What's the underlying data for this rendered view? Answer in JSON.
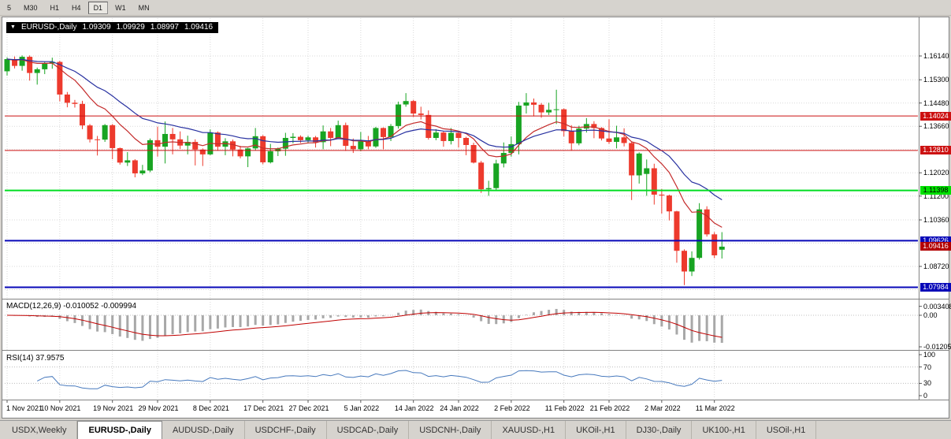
{
  "toolbar": {
    "timeframes": [
      "5",
      "M30",
      "H1",
      "H4",
      "D1",
      "W1",
      "MN"
    ],
    "active": "D1"
  },
  "chart": {
    "symbol": "EURUSD-,Daily",
    "ohlc": {
      "open": "1.09309",
      "high": "1.09929",
      "low": "1.08997",
      "close": "1.09416"
    },
    "mas": [
      {
        "name": "ma-fast",
        "period": 10,
        "color": "#c42b2b"
      },
      {
        "name": "ma-slow",
        "period": 21,
        "color": "#2730a0"
      }
    ],
    "hlines": [
      {
        "value": 1.14024,
        "color": "#cc1111",
        "width": 1
      },
      {
        "value": 1.1281,
        "color": "#cc1111",
        "width": 1
      },
      {
        "value": 1.11398,
        "color": "#00dd22",
        "width": 2
      },
      {
        "value": 1.09626,
        "color": "#0808b8",
        "width": 2
      },
      {
        "value": 1.07984,
        "color": "#0808b8",
        "width": 2
      }
    ],
    "tags": [
      {
        "label": "1.14024",
        "value": 1.14024,
        "bg": "#cc1111",
        "fg": "#ffffff",
        "current": false
      },
      {
        "label": "1.12810",
        "value": 1.1281,
        "bg": "#cc1111",
        "fg": "#ffffff",
        "current": false
      },
      {
        "label": "1.11398",
        "value": 1.11398,
        "bg": "#00e000",
        "fg": "#000000",
        "current": false
      },
      {
        "label": "1.09626",
        "value": 1.09626,
        "bg": "#0808b8",
        "fg": "#ffffff",
        "current": false
      },
      {
        "label": "1.09416",
        "value": 1.09416,
        "bg": "#b30000",
        "fg": "#ffffff",
        "current": true
      },
      {
        "label": "1.07984",
        "value": 1.07984,
        "bg": "#0808b8",
        "fg": "#ffffff",
        "current": false
      }
    ]
  },
  "chart_data": {
    "type": "candlestick",
    "symbol": "EURUSD",
    "timeframe": "Daily",
    "y_grid": [
      1.1614,
      1.153,
      1.1448,
      1.1366,
      1.1284,
      1.1202,
      1.112,
      1.1036,
      1.0954,
      1.0872,
      1.079
    ],
    "price_axis_labels": [
      {
        "label": "1.16140",
        "value": 1.1614
      },
      {
        "label": "1.15300",
        "value": 1.153
      },
      {
        "label": "1.14480",
        "value": 1.1448
      },
      {
        "label": "1.13660",
        "value": 1.1366
      },
      {
        "label": "1.12020",
        "value": 1.1202
      },
      {
        "label": "1.11200",
        "value": 1.112
      },
      {
        "label": "1.10360",
        "value": 1.1036
      },
      {
        "label": "1.08720",
        "value": 1.0872
      }
    ],
    "x_ticks": [
      {
        "index": 0,
        "label": "1 Nov 2021"
      },
      {
        "index": 7,
        "label": "10 Nov 2021"
      },
      {
        "index": 14,
        "label": "19 Nov 2021"
      },
      {
        "index": 20,
        "label": "29 Nov 2021"
      },
      {
        "index": 27,
        "label": "8 Dec 2021"
      },
      {
        "index": 34,
        "label": "17 Dec 2021"
      },
      {
        "index": 40,
        "label": "27 Dec 2021"
      },
      {
        "index": 47,
        "label": "5 Jan 2022"
      },
      {
        "index": 54,
        "label": "14 Jan 2022"
      },
      {
        "index": 60,
        "label": "24 Jan 2022"
      },
      {
        "index": 67,
        "label": "2 Feb 2022"
      },
      {
        "index": 74,
        "label": "11 Feb 2022"
      },
      {
        "index": 80,
        "label": "21 Feb 2022"
      },
      {
        "index": 87,
        "label": "2 Mar 2022"
      },
      {
        "index": 94,
        "label": "11 Mar 2022"
      }
    ],
    "candles": [
      [
        1.156,
        1.1609,
        1.1545,
        1.1603
      ],
      [
        1.1603,
        1.1612,
        1.157,
        1.1579
      ],
      [
        1.1579,
        1.1616,
        1.1562,
        1.1611
      ],
      [
        1.1611,
        1.1616,
        1.1527,
        1.1554
      ],
      [
        1.1554,
        1.1573,
        1.1513,
        1.1567
      ],
      [
        1.1567,
        1.1593,
        1.155,
        1.1588
      ],
      [
        1.1588,
        1.1608,
        1.1569,
        1.1593
      ],
      [
        1.1593,
        1.1597,
        1.1454,
        1.1478
      ],
      [
        1.1478,
        1.1487,
        1.1433,
        1.1449
      ],
      [
        1.1449,
        1.1459,
        1.1432,
        1.1445
      ],
      [
        1.1445,
        1.1456,
        1.1356,
        1.1369
      ],
      [
        1.1369,
        1.1374,
        1.1309,
        1.132
      ],
      [
        1.132,
        1.1332,
        1.1263,
        1.1319
      ],
      [
        1.1319,
        1.1374,
        1.1311,
        1.137
      ],
      [
        1.137,
        1.1374,
        1.125,
        1.1289
      ],
      [
        1.1289,
        1.1291,
        1.1231,
        1.1238
      ],
      [
        1.1238,
        1.1275,
        1.1226,
        1.1246
      ],
      [
        1.1246,
        1.125,
        1.1186,
        1.12
      ],
      [
        1.12,
        1.123,
        1.1194,
        1.121
      ],
      [
        1.121,
        1.1323,
        1.1204,
        1.1317
      ],
      [
        1.1317,
        1.1365,
        1.1259,
        1.1294
      ],
      [
        1.1294,
        1.1383,
        1.1235,
        1.1339
      ],
      [
        1.1339,
        1.136,
        1.1267,
        1.132
      ],
      [
        1.132,
        1.1348,
        1.1286,
        1.1298
      ],
      [
        1.1298,
        1.1333,
        1.1267,
        1.1311
      ],
      [
        1.1311,
        1.132,
        1.1228,
        1.1284
      ],
      [
        1.1284,
        1.1288,
        1.1226,
        1.1267
      ],
      [
        1.1267,
        1.1355,
        1.1264,
        1.1344
      ],
      [
        1.1344,
        1.1348,
        1.128,
        1.1294
      ],
      [
        1.1294,
        1.1324,
        1.1264,
        1.1313
      ],
      [
        1.1313,
        1.1319,
        1.126,
        1.1284
      ],
      [
        1.1284,
        1.1297,
        1.1253,
        1.126
      ],
      [
        1.126,
        1.129,
        1.1222,
        1.1288
      ],
      [
        1.1288,
        1.136,
        1.1281,
        1.1331
      ],
      [
        1.1331,
        1.1335,
        1.1232,
        1.1239
      ],
      [
        1.1239,
        1.1304,
        1.1235,
        1.1278
      ],
      [
        1.1278,
        1.1291,
        1.1261,
        1.1287
      ],
      [
        1.1287,
        1.1343,
        1.1262,
        1.1325
      ],
      [
        1.1325,
        1.1342,
        1.1306,
        1.1329
      ],
      [
        1.1329,
        1.1334,
        1.1307,
        1.1317
      ],
      [
        1.1317,
        1.1333,
        1.1308,
        1.1327
      ],
      [
        1.1327,
        1.1332,
        1.1291,
        1.131
      ],
      [
        1.131,
        1.1369,
        1.1285,
        1.1348
      ],
      [
        1.1348,
        1.136,
        1.1296,
        1.1325
      ],
      [
        1.1325,
        1.1386,
        1.1321,
        1.137
      ],
      [
        1.137,
        1.1379,
        1.1279,
        1.1297
      ],
      [
        1.1297,
        1.1323,
        1.1272,
        1.1285
      ],
      [
        1.1285,
        1.1346,
        1.1278,
        1.1313
      ],
      [
        1.1313,
        1.1332,
        1.1285,
        1.1295
      ],
      [
        1.1295,
        1.1364,
        1.129,
        1.136
      ],
      [
        1.136,
        1.1362,
        1.1285,
        1.1328
      ],
      [
        1.1328,
        1.1374,
        1.1314,
        1.1367
      ],
      [
        1.1367,
        1.1453,
        1.1358,
        1.1443
      ],
      [
        1.1443,
        1.1483,
        1.1435,
        1.1455
      ],
      [
        1.1455,
        1.1459,
        1.1399,
        1.1411
      ],
      [
        1.1411,
        1.1435,
        1.139,
        1.1406
      ],
      [
        1.1406,
        1.1422,
        1.1319,
        1.1325
      ],
      [
        1.1325,
        1.1356,
        1.1317,
        1.1344
      ],
      [
        1.1344,
        1.1348,
        1.1294,
        1.1314
      ],
      [
        1.1314,
        1.136,
        1.1302,
        1.1343
      ],
      [
        1.1343,
        1.1348,
        1.1291,
        1.1325
      ],
      [
        1.1325,
        1.1329,
        1.1264,
        1.13
      ],
      [
        1.13,
        1.1308,
        1.1235,
        1.1238
      ],
      [
        1.1238,
        1.1244,
        1.1131,
        1.1144
      ],
      [
        1.1144,
        1.1174,
        1.1121,
        1.1148
      ],
      [
        1.1148,
        1.1248,
        1.114,
        1.1235
      ],
      [
        1.1235,
        1.1309,
        1.1221,
        1.1272
      ],
      [
        1.1272,
        1.133,
        1.1259,
        1.1303
      ],
      [
        1.1303,
        1.1452,
        1.1267,
        1.1439
      ],
      [
        1.1439,
        1.1483,
        1.1411,
        1.145
      ],
      [
        1.145,
        1.1464,
        1.1401,
        1.1442
      ],
      [
        1.1442,
        1.1448,
        1.1396,
        1.1415
      ],
      [
        1.1415,
        1.1449,
        1.1406,
        1.1424
      ],
      [
        1.1424,
        1.1495,
        1.1374,
        1.1426
      ],
      [
        1.1426,
        1.1429,
        1.133,
        1.1349
      ],
      [
        1.1349,
        1.137,
        1.128,
        1.1306
      ],
      [
        1.1306,
        1.1368,
        1.1299,
        1.1358
      ],
      [
        1.1358,
        1.1395,
        1.1344,
        1.1374
      ],
      [
        1.1374,
        1.1384,
        1.1324,
        1.136
      ],
      [
        1.136,
        1.1363,
        1.1316,
        1.1323
      ],
      [
        1.1323,
        1.1391,
        1.1304,
        1.1311
      ],
      [
        1.1311,
        1.1368,
        1.1288,
        1.1327
      ],
      [
        1.1327,
        1.1359,
        1.1295,
        1.1307
      ],
      [
        1.1307,
        1.131,
        1.1106,
        1.1193
      ],
      [
        1.1193,
        1.1274,
        1.1164,
        1.127
      ],
      [
        1.1198,
        1.1249,
        1.1121,
        1.1218
      ],
      [
        1.1218,
        1.1234,
        1.109,
        1.1125
      ],
      [
        1.1125,
        1.1145,
        1.1058,
        1.1122
      ],
      [
        1.1122,
        1.1125,
        1.1034,
        1.1066
      ],
      [
        1.1066,
        1.1068,
        1.0885,
        1.0927
      ],
      [
        1.0927,
        1.0932,
        1.0806,
        1.0854
      ],
      [
        1.0854,
        1.0925,
        1.0838,
        1.0902
      ],
      [
        1.0902,
        1.1095,
        1.0896,
        1.1073
      ],
      [
        1.1073,
        1.1084,
        1.0977,
        1.0985
      ],
      [
        1.0985,
        1.0993,
        1.0901,
        1.0911
      ],
      [
        1.09309,
        1.09929,
        1.08997,
        1.09416
      ]
    ]
  },
  "macd": {
    "label": "MACD(12,26,9) -0.010052 -0.009994",
    "fast": 12,
    "slow": 26,
    "signal": 9,
    "axis": [
      {
        "label": "0.003408",
        "value": 0.003408
      },
      {
        "label": "0.00",
        "value": 0
      },
      {
        "label": "-0.01205",
        "value": -0.01205
      }
    ]
  },
  "rsi": {
    "label": "RSI(14) 37.9575",
    "period": 14,
    "levels": [
      70,
      30
    ],
    "axis": [
      {
        "label": "100",
        "value": 100
      },
      {
        "label": "70",
        "value": 70
      },
      {
        "label": "30",
        "value": 30
      },
      {
        "label": "0",
        "value": 0
      }
    ]
  },
  "tabs": {
    "items": [
      {
        "label": "USDX,Weekly",
        "active": false
      },
      {
        "label": "EURUSD-,Daily",
        "active": true
      },
      {
        "label": "AUDUSD-,Daily",
        "active": false
      },
      {
        "label": "USDCHF-,Daily",
        "active": false
      },
      {
        "label": "USDCAD-,Daily",
        "active": false
      },
      {
        "label": "USDCNH-,Daily",
        "active": false
      },
      {
        "label": "XAUUSD-,H1",
        "active": false
      },
      {
        "label": "UKOil-,H1",
        "active": false
      },
      {
        "label": "DJ30-,Daily",
        "active": false
      },
      {
        "label": "UK100-,H1",
        "active": false
      },
      {
        "label": "USOil-,H1",
        "active": false
      }
    ]
  },
  "style": {
    "candle_up": "#18a422",
    "candle_down": "#ed3a2d",
    "macd_hist": "#a8a8a8",
    "macd_signal": "#c00000",
    "rsi_line": "#4779bd",
    "grid": "#d9d9d9",
    "separator": "#828282"
  }
}
